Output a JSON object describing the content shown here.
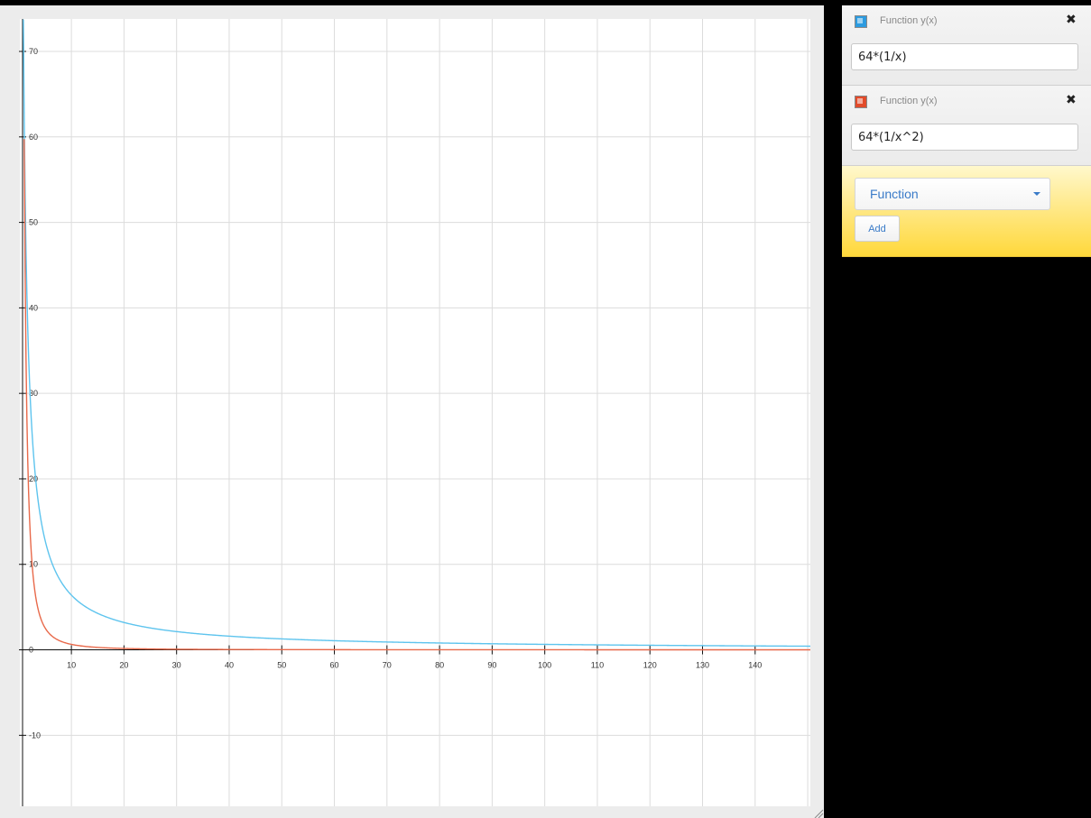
{
  "functions": [
    {
      "label": "Function y(x)",
      "expression": "64*(1/x)",
      "color": "#5ec4ee",
      "swatch": "#2c9be0",
      "close": "✖"
    },
    {
      "label": "Function y(x)",
      "expression": "64*(1/x^2)",
      "color": "#e8694a",
      "swatch": "#e24b2a",
      "close": "✖"
    }
  ],
  "add_panel": {
    "type_selected": "Function",
    "add_label": "Add"
  },
  "chart_data": {
    "type": "line",
    "title": "",
    "xlabel": "",
    "ylabel": "",
    "xlim": [
      0.2,
      150.5
    ],
    "ylim": [
      -18.3,
      73.8
    ],
    "x_ticks": [
      10,
      20,
      30,
      40,
      50,
      60,
      70,
      80,
      90,
      100,
      110,
      120,
      130,
      140
    ],
    "y_ticks": [
      -10,
      0,
      10,
      20,
      30,
      40,
      50,
      60,
      70
    ],
    "grid": true,
    "legend": "none",
    "series": [
      {
        "expression": "64*(1/x)",
        "color": "#5ec4ee",
        "x": [
          1,
          2,
          3,
          5,
          10,
          20,
          30,
          40,
          50,
          60,
          80,
          100,
          120,
          140,
          150
        ],
        "y": [
          64,
          32,
          21.33,
          12.8,
          6.4,
          3.2,
          2.13,
          1.6,
          1.28,
          1.07,
          0.8,
          0.64,
          0.53,
          0.46,
          0.43
        ]
      },
      {
        "expression": "64*(1/x^2)",
        "color": "#e8694a",
        "x": [
          1,
          1.5,
          2,
          3,
          5,
          10,
          20,
          50,
          100,
          150
        ],
        "y": [
          64,
          28.44,
          16,
          7.11,
          2.56,
          0.64,
          0.16,
          0.026,
          0.0064,
          0.0028
        ]
      }
    ]
  }
}
